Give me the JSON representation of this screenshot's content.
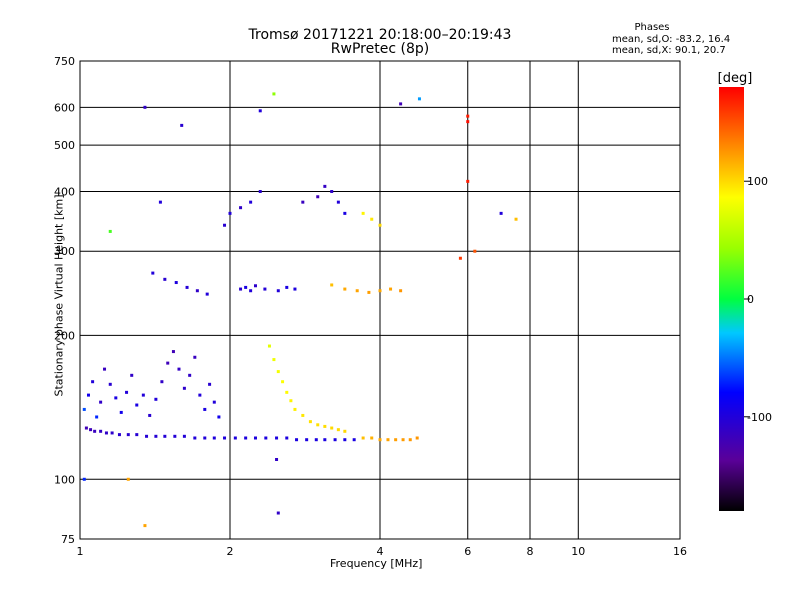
{
  "header": {
    "title_line1": "Tromsø 20171221 20:18:00–20:19:43",
    "title_line2": "RwPretec (8p)",
    "phases_title": "Phases",
    "phases_o": "mean, sd,O: -83.2, 16.4",
    "phases_x": "mean, sd,X:  90.1, 20.7"
  },
  "chart_data": {
    "type": "scatter",
    "title": "Tromsø 20171221 20:18:00–20:19:43",
    "subtitle": "RwPretec (8p)",
    "xlabel": "Frequency [MHz]",
    "ylabel": "Stationary phase Virtual Height [km]",
    "x_scale": "log",
    "y_scale": "log",
    "xlim": [
      1,
      16
    ],
    "ylim": [
      75,
      750
    ],
    "x_ticks": [
      1,
      2,
      4,
      6,
      8,
      10,
      16
    ],
    "y_ticks": [
      75,
      100,
      200,
      300,
      400,
      500,
      600,
      750
    ],
    "grid": true,
    "colorbar": {
      "label": "[deg]",
      "range": [
        -180,
        180
      ],
      "ticks": [
        100,
        0,
        -100
      ]
    },
    "series": [
      {
        "x": [
          1.03,
          1.05,
          1.07,
          1.1,
          1.13,
          1.16,
          1.2,
          1.25,
          1.3,
          1.36,
          1.42,
          1.48,
          1.55,
          1.62,
          1.7,
          1.78,
          1.86,
          1.95,
          2.05,
          2.15,
          2.25,
          2.36,
          2.48,
          2.6,
          2.72,
          2.85,
          2.98,
          3.1,
          3.25,
          3.4,
          3.55
        ],
        "y": [
          128,
          127,
          126,
          126,
          125,
          125,
          124,
          124,
          124,
          123,
          123,
          123,
          123,
          123,
          122,
          122,
          122,
          122,
          122,
          122,
          122,
          122,
          122,
          122,
          121,
          121,
          121,
          121,
          121,
          121,
          121
        ],
        "phase": [
          -120,
          -118,
          -115,
          -112,
          -110,
          -108,
          -106,
          -105,
          -104,
          -103,
          -103,
          -102,
          -102,
          -101,
          -100,
          -100,
          -99,
          -99,
          -98,
          -98,
          -98,
          -97,
          -97,
          -97,
          -96,
          -96,
          -96,
          -96,
          -96,
          -95,
          -95
        ]
      },
      {
        "x": [
          3.7,
          3.85,
          4.0,
          4.15,
          4.3,
          4.45,
          4.6,
          4.75
        ],
        "y": [
          122,
          122,
          121,
          121,
          121,
          121,
          121,
          122
        ],
        "phase": [
          110,
          115,
          118,
          120,
          122,
          123,
          124,
          125
        ]
      },
      {
        "x": [
          2.4,
          2.45,
          2.5,
          2.55,
          2.6,
          2.65,
          2.7,
          2.8,
          2.9,
          3.0,
          3.1,
          3.2,
          3.3,
          3.4
        ],
        "y": [
          190,
          178,
          168,
          160,
          152,
          146,
          140,
          136,
          132,
          130,
          129,
          128,
          127,
          126
        ],
        "phase": [
          75,
          80,
          82,
          85,
          88,
          90,
          92,
          95,
          97,
          98,
          99,
          100,
          100,
          101
        ]
      },
      {
        "x": [
          1.02,
          1.04,
          1.06,
          1.08,
          1.1,
          1.12,
          1.15,
          1.18,
          1.21,
          1.24,
          1.27,
          1.3,
          1.34,
          1.38,
          1.42,
          1.46,
          1.5,
          1.54,
          1.58,
          1.62,
          1.66,
          1.7,
          1.74,
          1.78,
          1.82,
          1.86,
          1.9
        ],
        "y": [
          140,
          150,
          160,
          135,
          145,
          170,
          158,
          148,
          138,
          152,
          165,
          143,
          150,
          136,
          147,
          160,
          175,
          185,
          170,
          155,
          165,
          180,
          150,
          140,
          158,
          145,
          135
        ],
        "phase": [
          -60,
          -90,
          -100,
          -70,
          -110,
          -115,
          -105,
          -95,
          -90,
          -100,
          -110,
          -95,
          -100,
          -105,
          -100,
          -110,
          -118,
          -120,
          -112,
          -108,
          -110,
          -115,
          -100,
          -95,
          -105,
          -100,
          -90
        ]
      },
      {
        "x": [
          1.4,
          1.48,
          1.56,
          1.64,
          1.72,
          1.8,
          2.1,
          2.15,
          2.2,
          2.25,
          2.35,
          2.5,
          2.6,
          2.7
        ],
        "y": [
          270,
          262,
          258,
          252,
          248,
          244,
          250,
          252,
          248,
          254,
          250,
          248,
          252,
          250
        ],
        "phase": [
          -100,
          -105,
          -98,
          -102,
          -110,
          -100,
          -105,
          -95,
          -100,
          -108,
          -102,
          -100,
          -95,
          -98
        ]
      },
      {
        "x": [
          3.2,
          3.4,
          3.6,
          3.8,
          4.0,
          4.2,
          4.4,
          3.7,
          3.85,
          4.0
        ],
        "y": [
          255,
          250,
          248,
          246,
          248,
          250,
          248,
          360,
          350,
          340
        ],
        "phase": [
          110,
          118,
          120,
          122,
          118,
          120,
          125,
          90,
          95,
          100
        ]
      },
      {
        "x": [
          2.1,
          2.2,
          2.3,
          2.8,
          3.0,
          3.1,
          3.2,
          3.3,
          3.4,
          1.95,
          2.0
        ],
        "y": [
          370,
          380,
          400,
          380,
          390,
          410,
          400,
          380,
          360,
          340,
          360
        ],
        "phase": [
          -110,
          -100,
          -105,
          -115,
          -120,
          -112,
          -108,
          -100,
          -95,
          -105,
          -100
        ]
      },
      {
        "x": [
          1.35,
          1.45,
          1.6,
          2.3,
          2.45,
          4.8,
          5.8,
          6.2,
          7.0,
          7.5,
          6.0,
          6.0,
          6.0,
          2.48,
          4.4,
          1.15,
          1.02,
          1.25,
          1.35,
          2.5
        ],
        "y": [
          600,
          380,
          550,
          590,
          640,
          625,
          290,
          300,
          360,
          350,
          420,
          560,
          575,
          110,
          610,
          330,
          100,
          100,
          80,
          85
        ],
        "phase": [
          -110,
          -100,
          -105,
          -100,
          40,
          -40,
          160,
          150,
          -100,
          110,
          170,
          175,
          170,
          -110,
          -120,
          20,
          -70,
          120,
          120,
          -110
        ]
      }
    ]
  }
}
